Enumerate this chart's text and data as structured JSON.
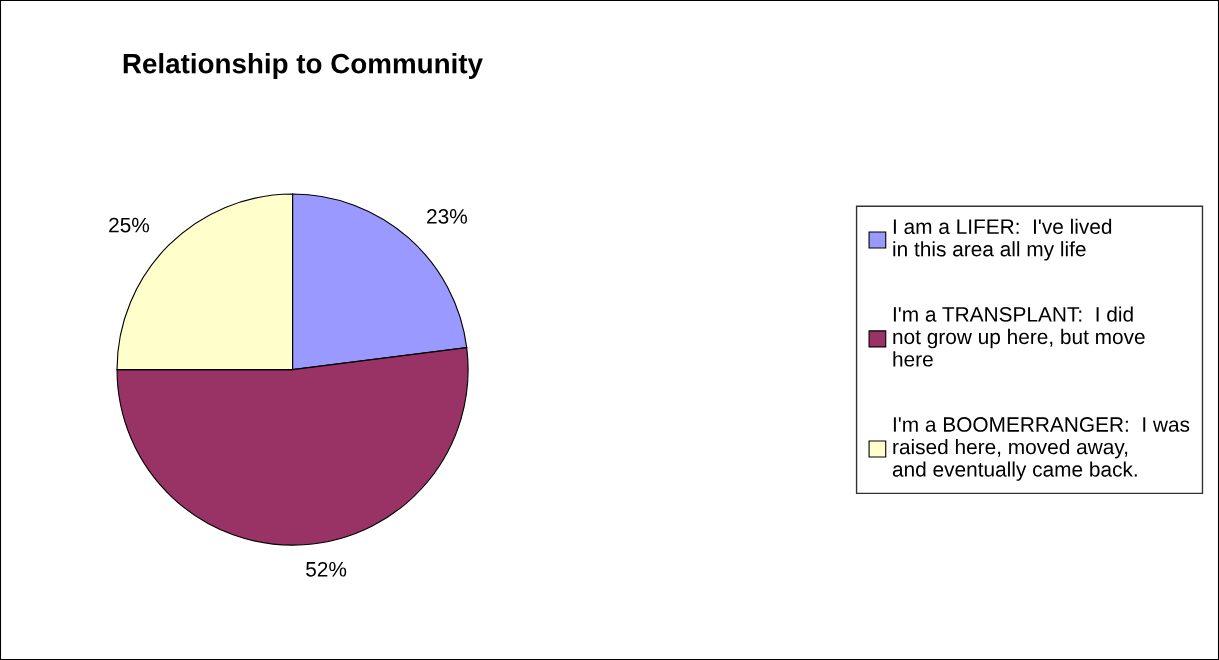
{
  "chart_data": {
    "type": "pie",
    "title": "Relationship to Community",
    "categories": [
      "I am a LIFER:  I've lived in this area all my life",
      "I'm a TRANSPLANT:  I did not grow up here, but move here",
      "I'm a BOOMERRANGER:  I was raised here, moved away, and eventually came back."
    ],
    "values": [
      23,
      52,
      25
    ],
    "colors": [
      "#9999ff",
      "#993366",
      "#ffffcc"
    ],
    "value_labels": [
      "23%",
      "52%",
      "25%"
    ],
    "legend": "right"
  }
}
